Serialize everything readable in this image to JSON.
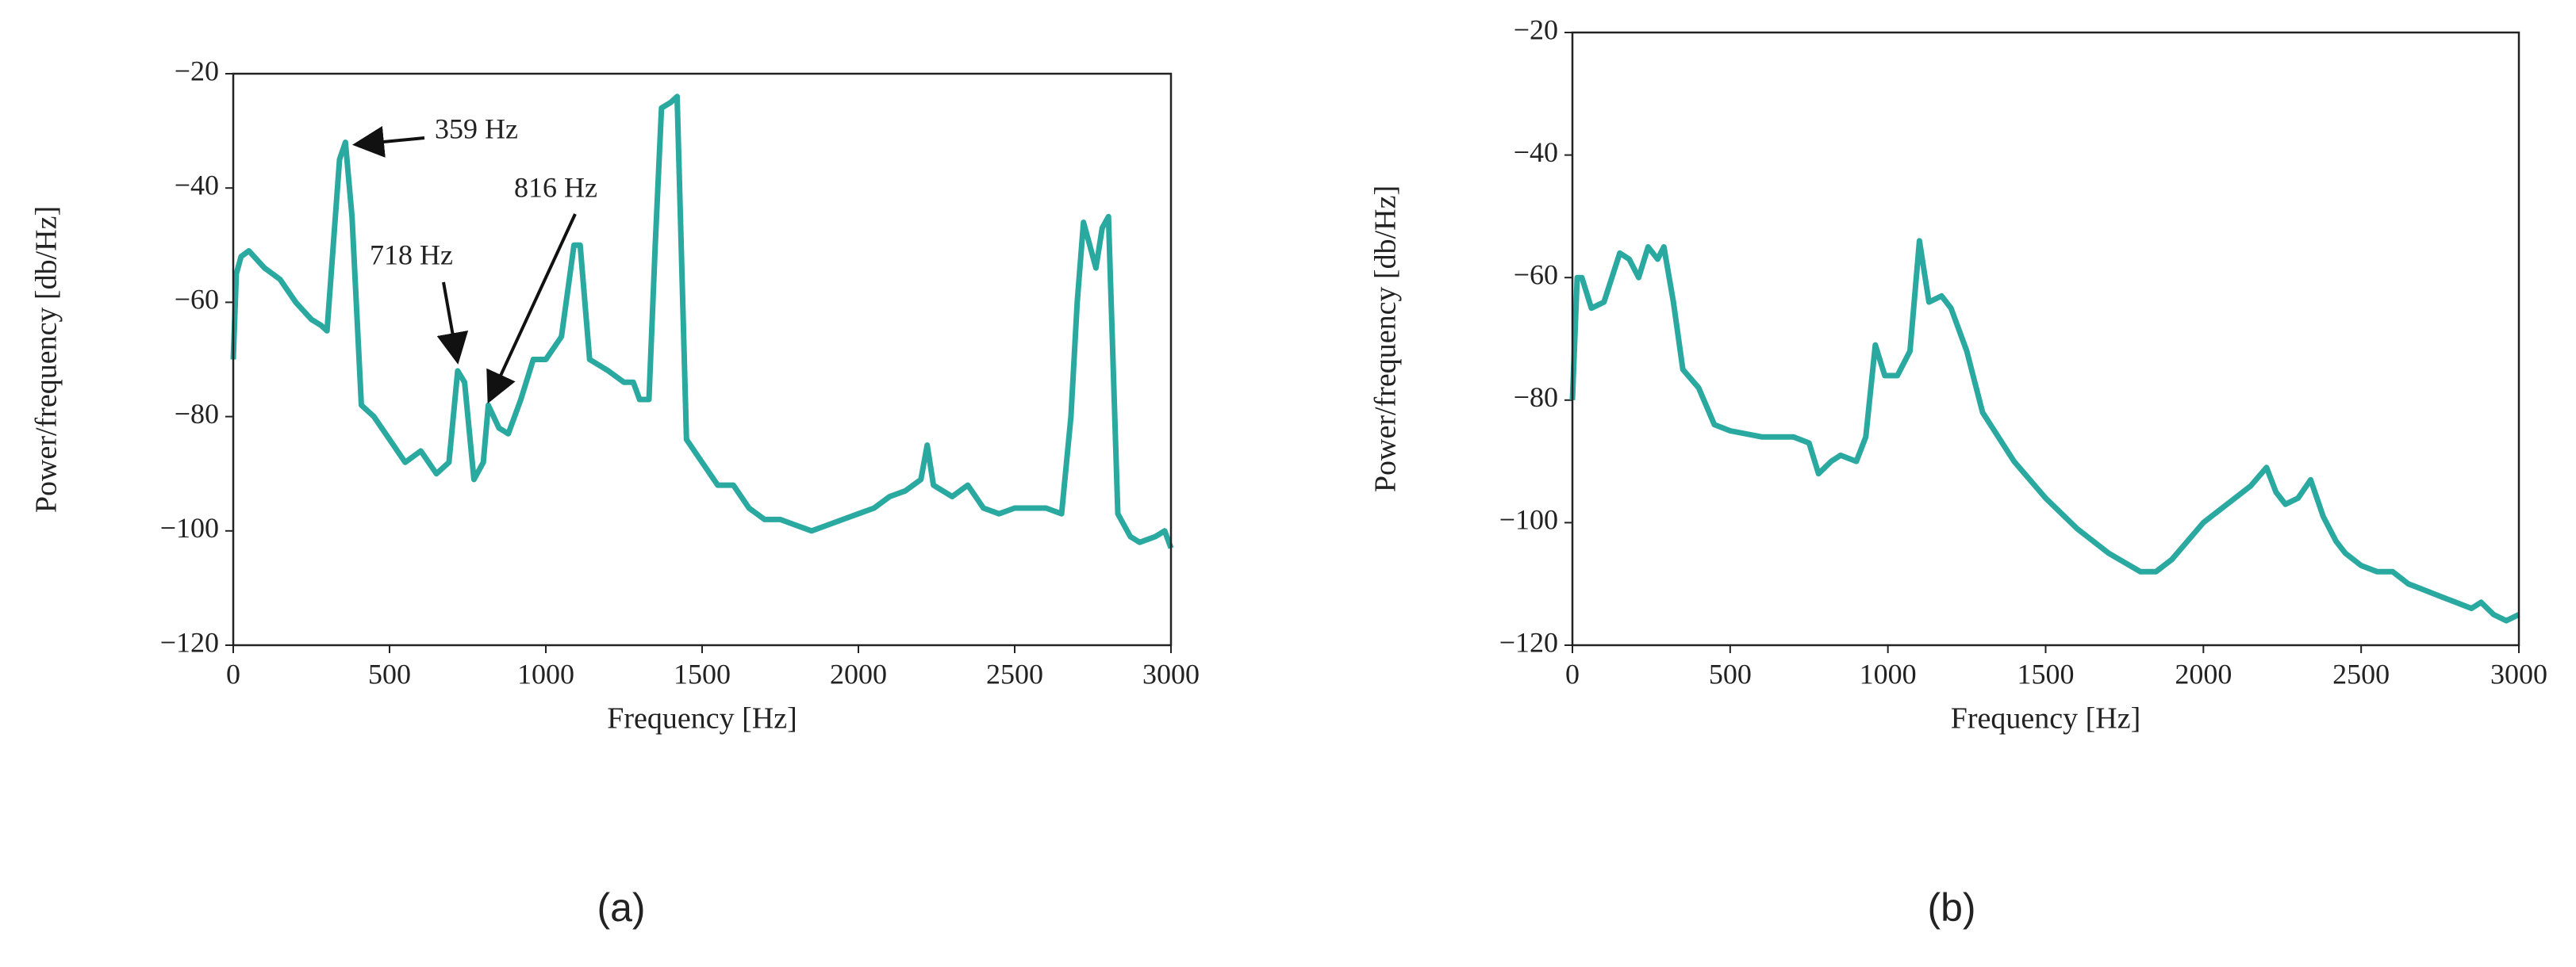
{
  "chart_data": [
    {
      "type": "line",
      "subplot_label": "(a)",
      "xlabel": "Frequency [Hz]",
      "ylabel": "Power/frequency [db/Hz]",
      "xlim": [
        0,
        3000
      ],
      "ylim": [
        -120,
        -20
      ],
      "xticks": [
        0,
        500,
        1000,
        1500,
        2000,
        2500,
        3000
      ],
      "yticks": [
        {
          "value": -120,
          "label": "−120"
        },
        {
          "value": -100,
          "label": "−100"
        },
        {
          "value": -80,
          "label": "−80"
        },
        {
          "value": -60,
          "label": "−60"
        },
        {
          "value": -40,
          "label": "−40"
        },
        {
          "value": -20,
          "label": "−20"
        }
      ],
      "annotations": [
        "359 Hz",
        "718 Hz",
        "816 Hz"
      ],
      "x": [
        0,
        10,
        25,
        50,
        100,
        150,
        200,
        250,
        280,
        300,
        320,
        340,
        359,
        380,
        410,
        450,
        500,
        550,
        600,
        650,
        690,
        718,
        740,
        770,
        800,
        816,
        850,
        880,
        920,
        960,
        1000,
        1050,
        1090,
        1110,
        1140,
        1200,
        1250,
        1280,
        1300,
        1330,
        1350,
        1370,
        1400,
        1420,
        1450,
        1500,
        1550,
        1600,
        1650,
        1700,
        1750,
        1800,
        1850,
        1900,
        1950,
        2000,
        2050,
        2100,
        2150,
        2200,
        2220,
        2240,
        2300,
        2350,
        2400,
        2450,
        2500,
        2550,
        2600,
        2650,
        2680,
        2700,
        2720,
        2740,
        2760,
        2780,
        2800,
        2830,
        2870,
        2900,
        2950,
        2980,
        3000
      ],
      "series": [
        {
          "color": "#2aa9a0",
          "values": [
            -70,
            -55,
            -52,
            -51,
            -54,
            -56,
            -60,
            -63,
            -64,
            -65,
            -50,
            -35,
            -32,
            -45,
            -78,
            -80,
            -84,
            -88,
            -86,
            -90,
            -88,
            -72,
            -74,
            -91,
            -88,
            -78,
            -82,
            -83,
            -77,
            -70,
            -70,
            -66,
            -50,
            -50,
            -70,
            -72,
            -74,
            -74,
            -77,
            -77,
            -50,
            -26,
            -25,
            -24,
            -84,
            -88,
            -92,
            -92,
            -96,
            -98,
            -98,
            -99,
            -100,
            -99,
            -98,
            -97,
            -96,
            -94,
            -93,
            -91,
            -85,
            -92,
            -94,
            -92,
            -96,
            -97,
            -96,
            -96,
            -96,
            -97,
            -80,
            -60,
            -46,
            -50,
            -54,
            -47,
            -45,
            -97,
            -101,
            -102,
            -101,
            -100,
            -103
          ]
        }
      ]
    },
    {
      "type": "line",
      "subplot_label": "(b)",
      "xlabel": "Frequency [Hz]",
      "ylabel": "Power/frequency [db/Hz]",
      "xlim": [
        0,
        3000
      ],
      "ylim": [
        -120,
        -20
      ],
      "xticks": [
        0,
        500,
        1000,
        1500,
        2000,
        2500,
        3000
      ],
      "yticks": [
        {
          "value": -120,
          "label": "−120"
        },
        {
          "value": -100,
          "label": "−100"
        },
        {
          "value": -80,
          "label": "−80"
        },
        {
          "value": -60,
          "label": "−60"
        },
        {
          "value": -40,
          "label": "−40"
        },
        {
          "value": -20,
          "label": "−20"
        }
      ],
      "x": [
        0,
        15,
        30,
        60,
        100,
        150,
        180,
        210,
        240,
        270,
        290,
        320,
        350,
        400,
        450,
        500,
        600,
        700,
        750,
        780,
        820,
        850,
        900,
        930,
        960,
        990,
        1030,
        1070,
        1100,
        1130,
        1170,
        1200,
        1250,
        1300,
        1400,
        1500,
        1600,
        1700,
        1800,
        1850,
        1900,
        1950,
        2000,
        2050,
        2100,
        2150,
        2200,
        2230,
        2260,
        2300,
        2340,
        2380,
        2420,
        2450,
        2500,
        2550,
        2600,
        2650,
        2700,
        2750,
        2800,
        2850,
        2880,
        2920,
        2960,
        3000
      ],
      "series": [
        {
          "color": "#2aa9a0",
          "values": [
            -80,
            -60,
            -60,
            -65,
            -64,
            -56,
            -57,
            -60,
            -55,
            -57,
            -55,
            -64,
            -75,
            -78,
            -84,
            -85,
            -86,
            -86,
            -87,
            -92,
            -90,
            -89,
            -90,
            -86,
            -71,
            -76,
            -76,
            -72,
            -54,
            -64,
            -63,
            -65,
            -72,
            -82,
            -90,
            -96,
            -101,
            -105,
            -108,
            -108,
            -106,
            -103,
            -100,
            -98,
            -96,
            -94,
            -91,
            -95,
            -97,
            -96,
            -93,
            -99,
            -103,
            -105,
            -107,
            -108,
            -108,
            -110,
            -111,
            -112,
            -113,
            -114,
            -113,
            -115,
            -116,
            -115
          ]
        }
      ]
    }
  ]
}
